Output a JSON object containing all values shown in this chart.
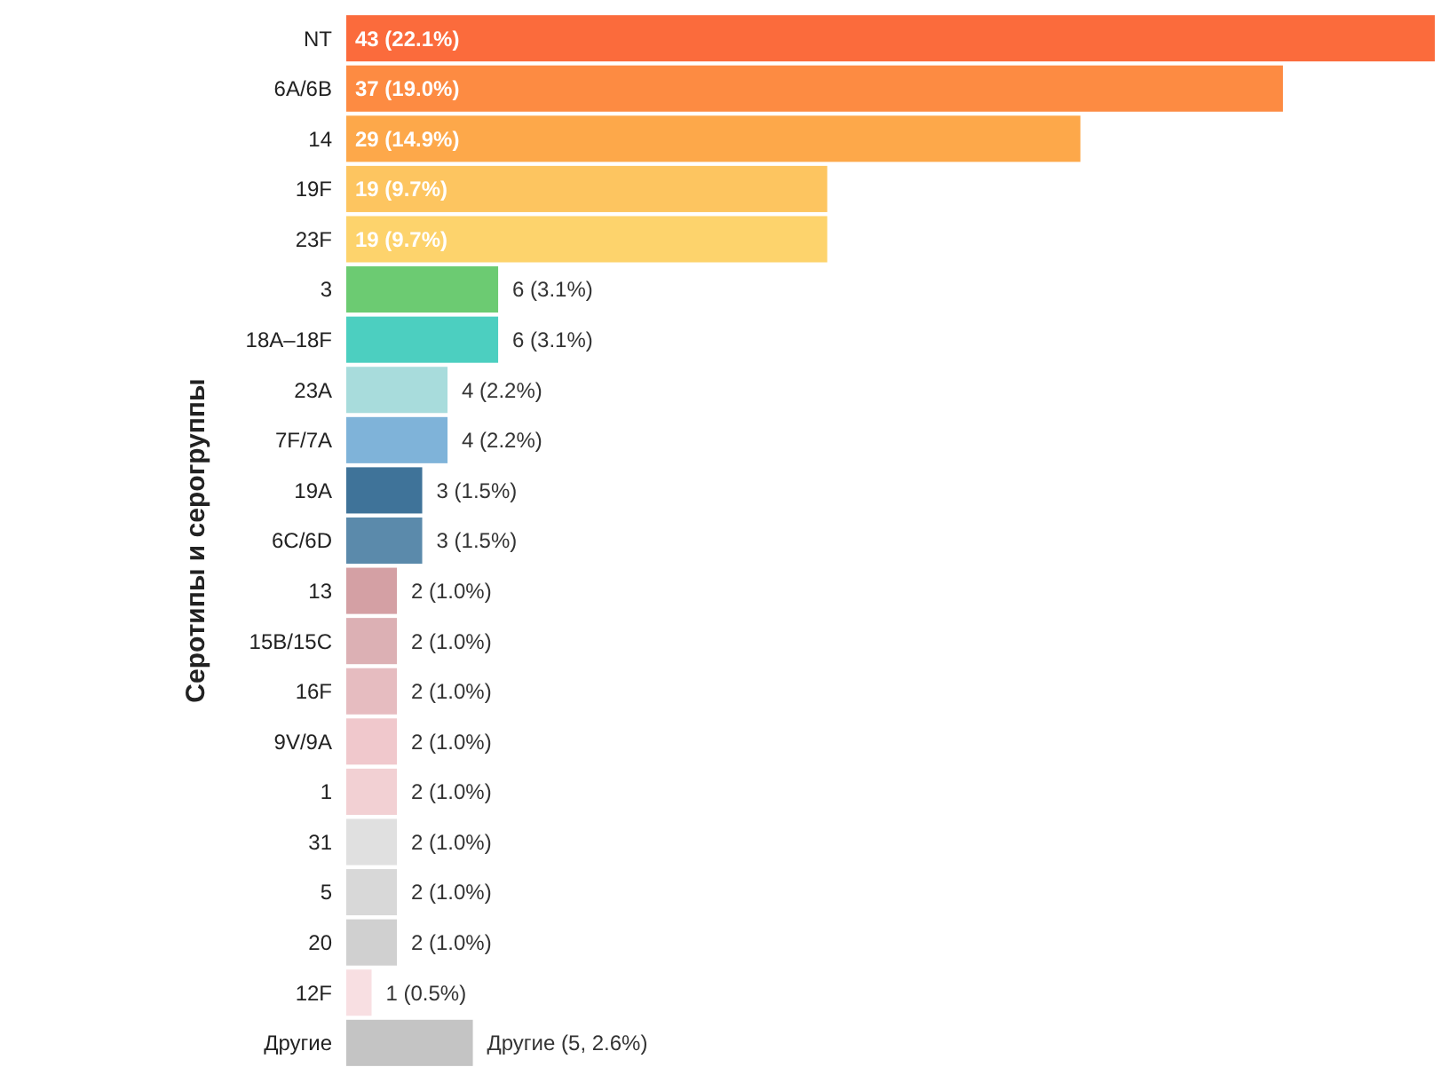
{
  "chart_data": {
    "type": "bar",
    "orientation": "horizontal",
    "ylabel": "Серотипы и серогруппы",
    "categories": [
      "NT",
      "6A/6B",
      "14",
      "19F",
      "23F",
      "3",
      "18A–18F",
      "23A",
      "7F/7A",
      "19A",
      "6C/6D",
      "13",
      "15B/15C",
      "16F",
      "9V/9A",
      "1",
      "31",
      "5",
      "20",
      "12F",
      "Другие"
    ],
    "values": [
      43,
      37,
      29,
      19,
      19,
      6,
      6,
      4,
      4,
      3,
      3,
      2,
      2,
      2,
      2,
      2,
      2,
      2,
      2,
      1,
      5
    ],
    "value_labels": [
      "43 (22.1%)",
      "37 (19.0%)",
      "29 (14.9%)",
      "19 (9.7%)",
      "19 (9.7%)",
      "6 (3.1%)",
      "6 (3.1%)",
      "4 (2.2%)",
      "4 (2.2%)",
      "3 (1.5%)",
      "3 (1.5%)",
      "2 (1.0%)",
      "2 (1.0%)",
      "2 (1.0%)",
      "2 (1.0%)",
      "2 (1.0%)",
      "2 (1.0%)",
      "2 (1.0%)",
      "2 (1.0%)",
      "1 (0.5%)",
      "Другие (5, 2.6%)"
    ],
    "colors": [
      "#fb6b3c",
      "#fd8b42",
      "#fda84a",
      "#fdc560",
      "#fdd36c",
      "#6ccb72",
      "#4ccfc0",
      "#a8dcdc",
      "#7fb3d9",
      "#3f7399",
      "#5b8aab",
      "#d4a0a4",
      "#dcb0b4",
      "#e6bcc0",
      "#f0c8cc",
      "#f2d0d3",
      "#e0e0e0",
      "#d8d8d8",
      "#d0d0d0",
      "#f8dfe2",
      "#c4c4c4"
    ]
  }
}
